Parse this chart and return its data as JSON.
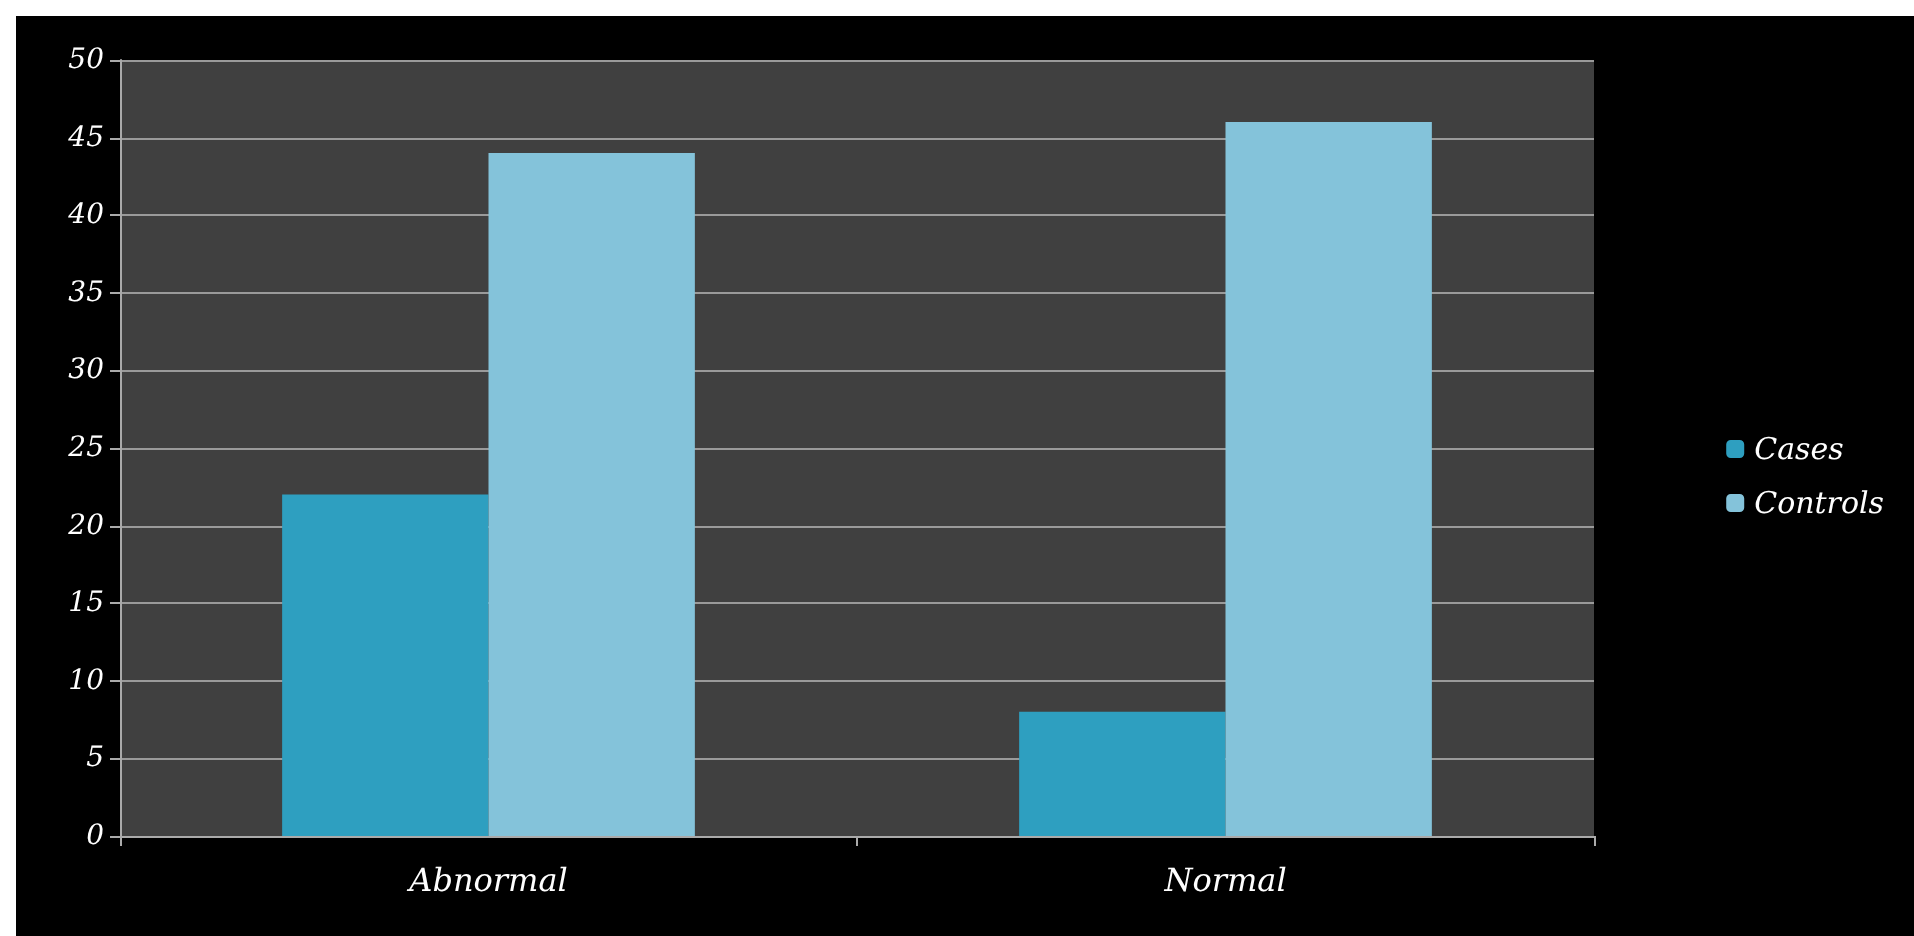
{
  "chart_data": {
    "type": "bar",
    "categories": [
      "Abnormal",
      "Normal"
    ],
    "series": [
      {
        "name": "Cases",
        "color": "#2e9fc0",
        "values": [
          22,
          8
        ]
      },
      {
        "name": "Controls",
        "color": "#84c3da",
        "values": [
          44,
          46
        ]
      }
    ],
    "ylim": [
      0,
      50
    ],
    "yticks": [
      0,
      5,
      10,
      15,
      20,
      25,
      30,
      35,
      40,
      45,
      50
    ],
    "grid": "y",
    "legend": "right"
  }
}
